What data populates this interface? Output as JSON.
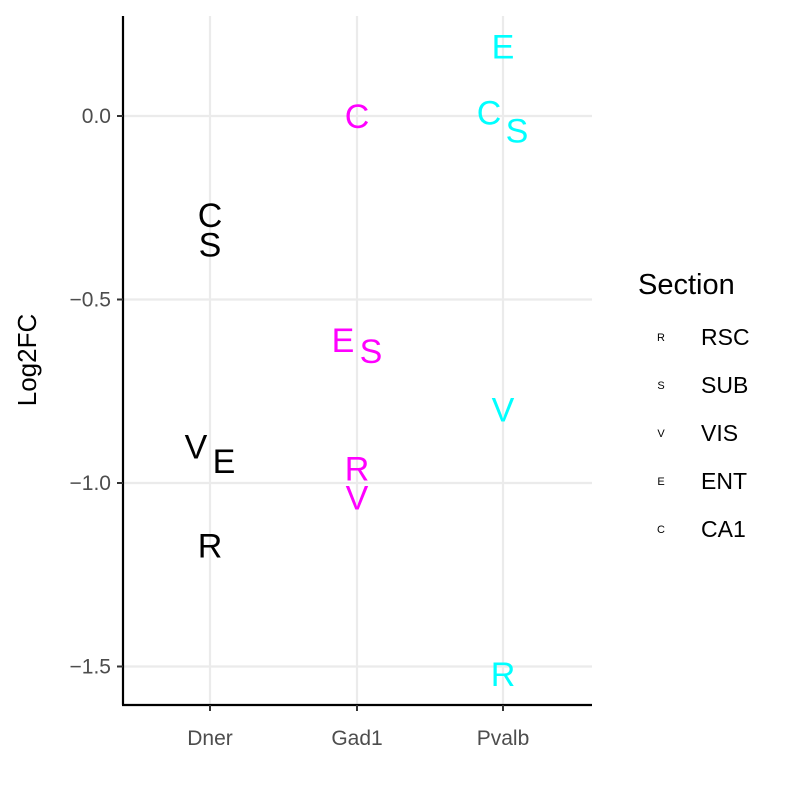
{
  "chart_data": {
    "type": "scatter",
    "ylabel": "Log2FC",
    "categories": [
      "Dner",
      "Gad1",
      "Pvalb"
    ],
    "ylim": [
      -1.6,
      0.27
    ],
    "yticks": [
      0.0,
      -0.5,
      -1.0,
      -1.5
    ],
    "ytick_labels": [
      "0.0",
      "−0.5",
      "−1.0",
      "−1.5"
    ],
    "grid": true,
    "legend": {
      "title": "Section",
      "placement": "right",
      "items": [
        {
          "key": "R",
          "label": "RSC"
        },
        {
          "key": "S",
          "label": "SUB"
        },
        {
          "key": "V",
          "label": "VIS"
        },
        {
          "key": "E",
          "label": "ENT"
        },
        {
          "key": "C",
          "label": "CA1"
        }
      ]
    },
    "gene_colors": {
      "Dner": "#000000",
      "Gad1": "#ff00ff",
      "Pvalb": "#00ffff"
    },
    "points": [
      {
        "gene": "Dner",
        "section": "C",
        "label": "C",
        "y": -0.27
      },
      {
        "gene": "Dner",
        "section": "S",
        "label": "S",
        "y": -0.35
      },
      {
        "gene": "Dner",
        "section": "V",
        "label": "V",
        "y": -0.9
      },
      {
        "gene": "Dner",
        "section": "E",
        "label": "E",
        "y": -0.94
      },
      {
        "gene": "Dner",
        "section": "R",
        "label": "R",
        "y": -1.17
      },
      {
        "gene": "Gad1",
        "section": "C",
        "label": "C",
        "y": 0.0
      },
      {
        "gene": "Gad1",
        "section": "E",
        "label": "E",
        "y": -0.61
      },
      {
        "gene": "Gad1",
        "section": "S",
        "label": "S",
        "y": -0.64
      },
      {
        "gene": "Gad1",
        "section": "R",
        "label": "R",
        "y": -0.96
      },
      {
        "gene": "Gad1",
        "section": "V",
        "label": "V",
        "y": -1.04
      },
      {
        "gene": "Pvalb",
        "section": "E",
        "label": "E",
        "y": 0.19
      },
      {
        "gene": "Pvalb",
        "section": "C",
        "label": "C",
        "y": 0.01
      },
      {
        "gene": "Pvalb",
        "section": "S",
        "label": "S",
        "y": -0.04
      },
      {
        "gene": "Pvalb",
        "section": "V",
        "label": "V",
        "y": -0.8
      },
      {
        "gene": "Pvalb",
        "section": "R",
        "label": "R",
        "y": -1.52
      }
    ]
  }
}
